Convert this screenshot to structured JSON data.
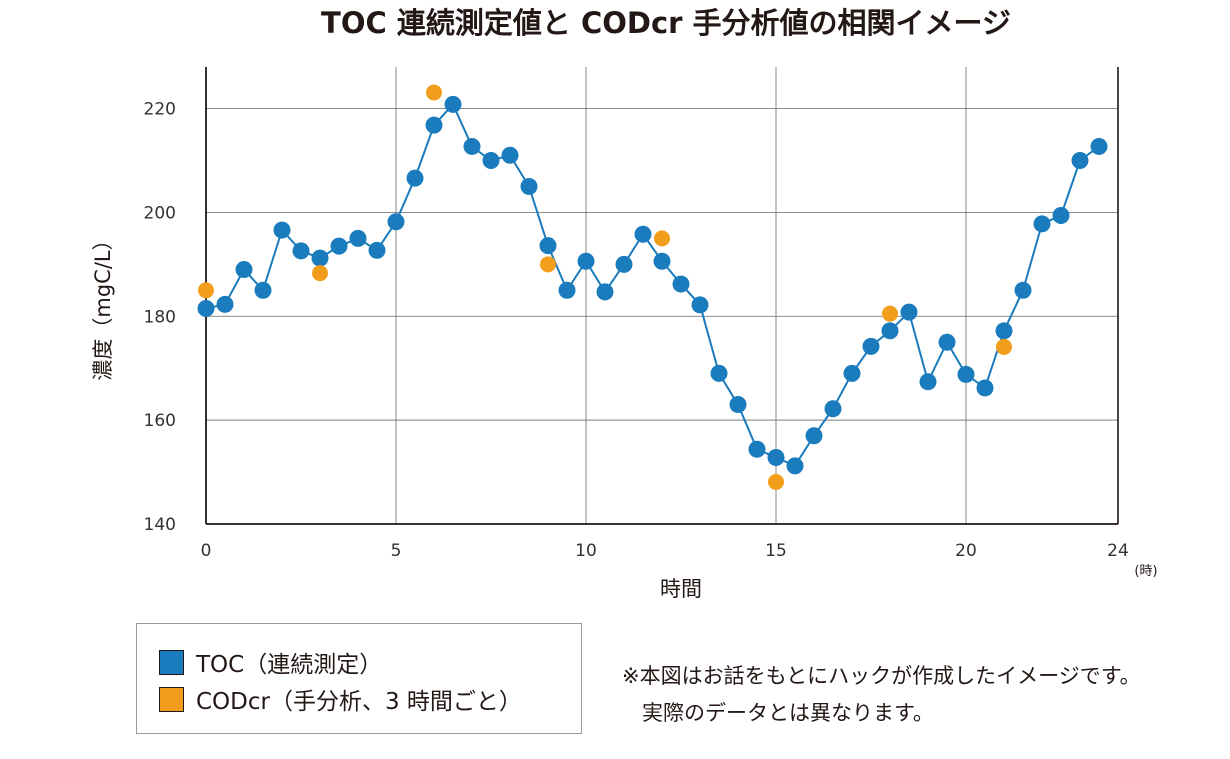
{
  "chart_data": {
    "type": "line",
    "title": "TOC 連続測定値と CODcr 手分析値の相関イメージ",
    "xlabel": "時間",
    "ylabel": "濃度（mgC/L）",
    "x_unit": "(時)",
    "xlim": [
      0,
      24
    ],
    "ylim": [
      140,
      228
    ],
    "x_ticks": [
      0,
      5,
      10,
      15,
      20,
      24
    ],
    "x_tick_labels": [
      "0",
      "5",
      "10",
      "15",
      "20",
      "24"
    ],
    "y_ticks": [
      140,
      160,
      180,
      200,
      220
    ],
    "y_tick_labels": [
      "140",
      "160",
      "180",
      "200",
      "220"
    ],
    "grid": true,
    "legend_placement": "bottom-left",
    "series": [
      {
        "name": "TOC（連続測定）",
        "type": "line",
        "color": "#1a7bbd",
        "x": [
          0,
          0.5,
          1,
          1.5,
          2,
          2.5,
          3,
          3.5,
          4,
          4.5,
          5,
          5.5,
          6,
          6.5,
          7,
          7.5,
          8,
          8.5,
          9,
          9.5,
          10,
          10.5,
          11,
          11.5,
          12,
          12.5,
          13,
          13.5,
          14,
          14.5,
          15,
          15.5,
          16,
          16.5,
          17,
          17.5,
          18,
          18.5,
          19,
          19.5,
          20,
          20.5,
          21,
          21.5,
          22,
          22.5,
          23,
          23.5
        ],
        "values": [
          181.5,
          182.3,
          189,
          185,
          196.6,
          192.6,
          191.2,
          193.5,
          195,
          192.7,
          198.2,
          206.6,
          216.8,
          220.8,
          212.7,
          210,
          211,
          205,
          193.6,
          185,
          190.6,
          184.7,
          190,
          195.8,
          190.6,
          186.2,
          182.2,
          169,
          163,
          154.4,
          152.8,
          151.2,
          157,
          162.2,
          169,
          174.2,
          177.2,
          180.8,
          167.4,
          175,
          168.8,
          166.2,
          177.2,
          185,
          197.8,
          199.4,
          210,
          212.7
        ]
      },
      {
        "name": "CODcr（手分析、3 時間ごと）",
        "type": "scatter",
        "color": "#f29e1c",
        "x": [
          0,
          3,
          6,
          9,
          12,
          15,
          18,
          21
        ],
        "values": [
          185,
          188.3,
          223.1,
          190,
          195,
          148.1,
          180.5,
          174.1
        ]
      }
    ]
  },
  "legend": {
    "items": [
      {
        "label": "TOC（連続測定）",
        "color": "#1a7bbd"
      },
      {
        "label": "CODcr（手分析、3 時間ごと）",
        "color": "#f29e1c"
      }
    ]
  },
  "note": {
    "line1": "※本図はお話をもとにハックが作成したイメージです。",
    "line2": "実際のデータとは異なります。"
  }
}
